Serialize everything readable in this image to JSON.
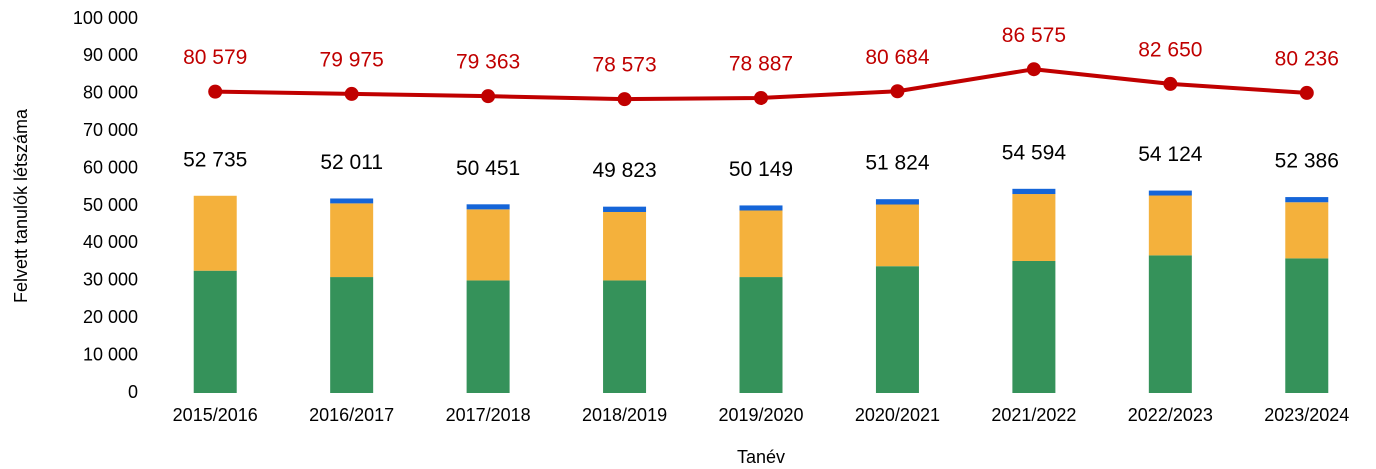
{
  "chart_data": {
    "type": "bar",
    "stacked": true,
    "xlabel": "Tanév",
    "ylabel": "Felvett tanulók létszáma",
    "categories": [
      "2015/2016",
      "2016/2017",
      "2017/2018",
      "2018/2019",
      "2019/2020",
      "2020/2021",
      "2021/2022",
      "2022/2023",
      "2023/2024"
    ],
    "series": [
      {
        "color": "#35925a",
        "values": [
          32700,
          31000,
          30100,
          30100,
          31000,
          33900,
          35300,
          36800,
          36000
        ]
      },
      {
        "color": "#f4b13c",
        "values": [
          20035,
          19700,
          19000,
          18300,
          17800,
          16500,
          17900,
          16000,
          15000
        ]
      },
      {
        "color": "#1565d8",
        "values": [
          0,
          1311,
          1351,
          1423,
          1349,
          1424,
          1394,
          1324,
          1386
        ]
      }
    ],
    "totals": [
      52735,
      52011,
      50451,
      49823,
      50149,
      51824,
      54594,
      54124,
      52386
    ],
    "total_labels": [
      "52 735",
      "52 011",
      "50 451",
      "49 823",
      "50 149",
      "51 824",
      "54 594",
      "54 124",
      "52 386"
    ],
    "line": {
      "type": "line",
      "color": "#c00000",
      "values": [
        80579,
        79975,
        79363,
        78573,
        78887,
        80684,
        86575,
        82650,
        80236
      ],
      "value_labels": [
        "80 579",
        "79 975",
        "79 363",
        "78 573",
        "78 887",
        "80 684",
        "86 575",
        "82 650",
        "80 236"
      ]
    },
    "ylim": [
      0,
      100000
    ],
    "yticks": [
      0,
      {
        "value": 10000,
        "label": "10 000"
      },
      {
        "value": 20000,
        "label": "20 000"
      },
      {
        "value": 30000,
        "label": "30 000"
      },
      {
        "value": 40000,
        "label": "40 000"
      },
      {
        "value": 50000,
        "label": "50 000"
      },
      {
        "value": 60000,
        "label": "60 000"
      },
      {
        "value": 70000,
        "label": "70 000"
      },
      {
        "value": 80000,
        "label": "80 000"
      },
      {
        "value": 90000,
        "label": "90 000"
      },
      {
        "value": 100000,
        "label": "100 000"
      }
    ],
    "grid": false
  }
}
